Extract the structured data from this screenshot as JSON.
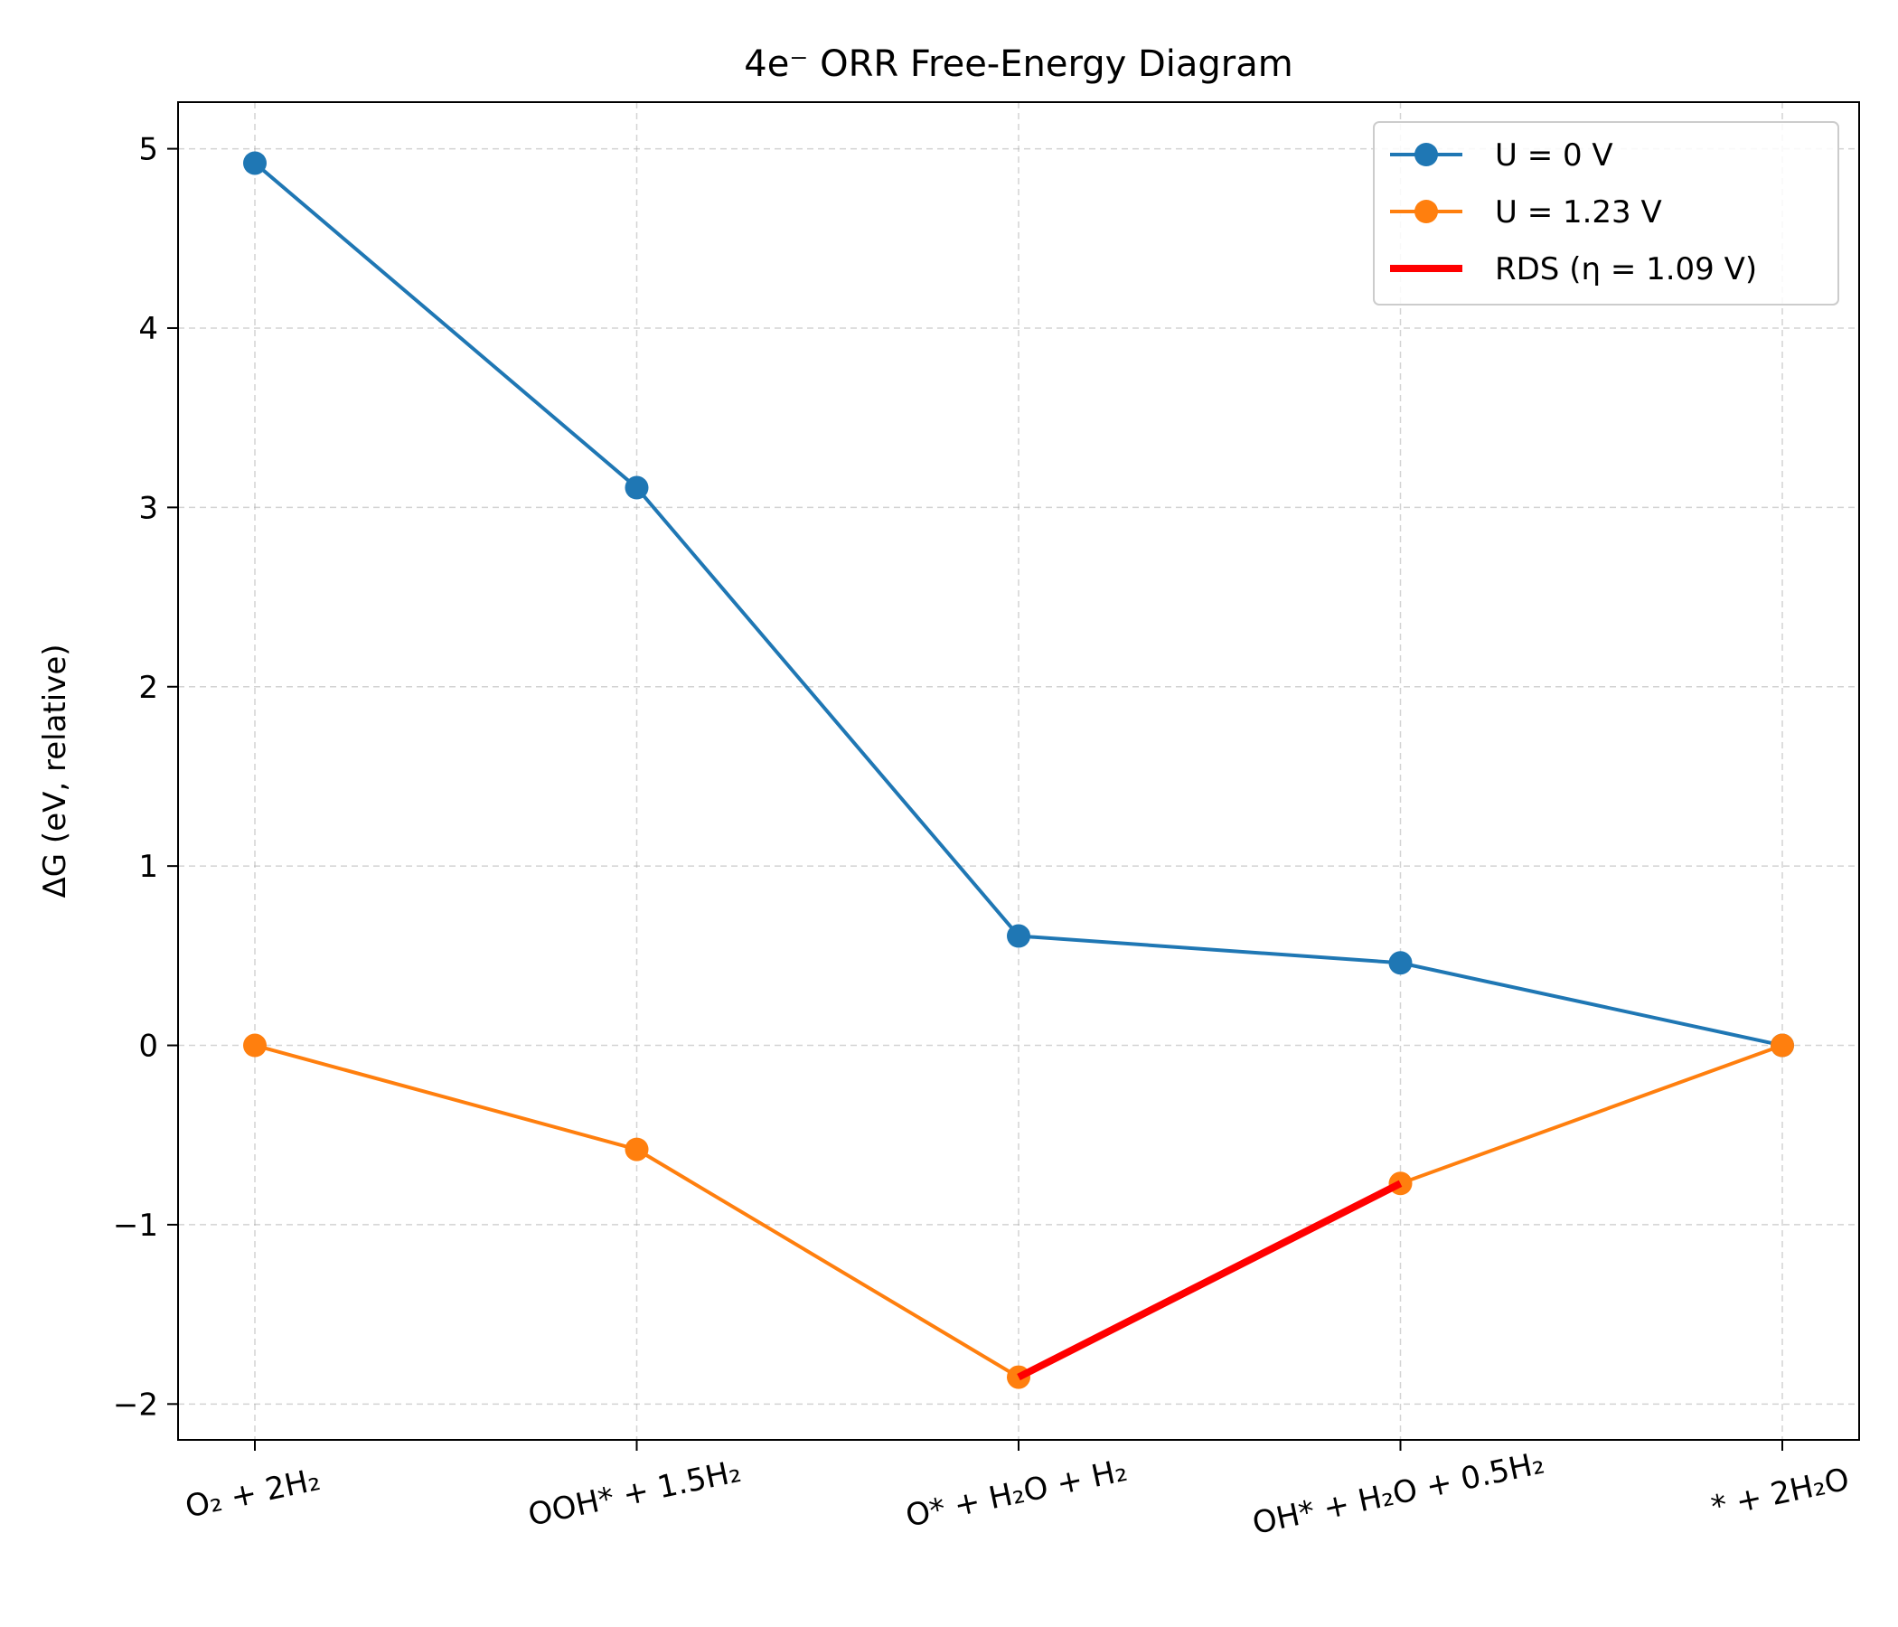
{
  "chart_data": {
    "type": "line",
    "title": "4e⁻ ORR Free-Energy Diagram",
    "xlabel": "",
    "ylabel": "ΔG (eV, relative)",
    "categories": [
      "O₂ + 2H₂",
      "OOH* + 1.5H₂",
      "O* + H₂O + H₂",
      "OH* + H₂O + 0.5H₂",
      "* + 2H₂O"
    ],
    "yticks": [
      -2,
      -1,
      0,
      1,
      2,
      3,
      4,
      5
    ],
    "ytick_labels": [
      "−2",
      "−1",
      "0",
      "1",
      "2",
      "3",
      "4",
      "5"
    ],
    "ylim": [
      -2.2,
      5.26
    ],
    "grid": true,
    "legend_position": "top-right",
    "series": [
      {
        "name": "U = 0 V",
        "color": "#1f77b4",
        "values": [
          4.92,
          3.11,
          0.61,
          0.46,
          0.0
        ]
      },
      {
        "name": "U = 1.23 V",
        "color": "#ff7f0e",
        "values": [
          0.0,
          -0.58,
          -1.85,
          -0.77,
          0.0
        ]
      }
    ],
    "highlight": {
      "name": "RDS (η = 1.09 V)",
      "color": "#ff0000",
      "from_index": 2,
      "to_index": 3,
      "series": "U = 1.23 V"
    }
  }
}
